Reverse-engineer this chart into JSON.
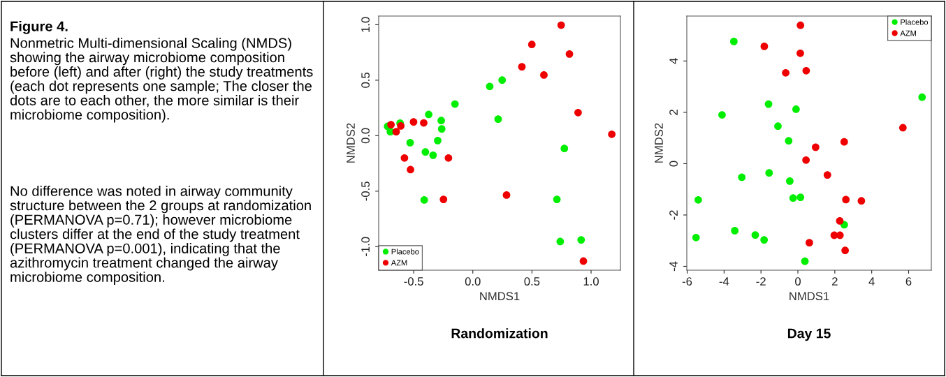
{
  "chart_data": [
    {
      "type": "scatter",
      "title": "Randomization",
      "xlabel": "NMDS1",
      "ylabel": "NMDS2",
      "annotations": [
        "Figure 4.",
        "Nonmetric Multi-dimensional Scaling (NMDS) showing the airway microbiome composition before (left) and after (right) the study treatments (each dot represents one sample; The closer the dots are to each other, the more similar is their microbiome composition).",
        "No difference was noted in airway community structure between the 2 groups at randomization (PERMANOVA p=0.71); however microbiome clusters differ at the end of the study treatment (PERMANOVA p=0.001), indicating that the azithromycin treatment changed the airway microbiome composition."
      ],
      "xlim": [
        -0.796,
        1.248
      ],
      "ylim": [
        -1.212,
        1.078
      ],
      "xticks": [
        -0.5,
        {
          "value": 0,
          "label": "0.0"
        },
        0.5,
        {
          "value": 1,
          "label": "1.0"
        }
      ],
      "yticks": [
        {
          "value": -1,
          "label": "-1.0"
        },
        -0.5,
        {
          "value": 0,
          "label": "0.0"
        },
        0.5,
        {
          "value": 1,
          "label": "1.0"
        }
      ],
      "grid": false,
      "legend": "bottom left",
      "marker": "circle",
      "series": [
        {
          "name": "Placebo",
          "color": "#00ee00",
          "x": [
            -0.721,
            -0.697,
            -0.615,
            -0.373,
            -0.267,
            -0.263,
            -0.151,
            -0.53,
            -0.297,
            -0.401,
            -0.336,
            -0.411,
            0.143,
            0.248,
            0.214,
            0.774,
            0.711,
            0.739,
            0.916
          ],
          "values": [
            0.084,
            0.036,
            0.113,
            0.191,
            0.136,
            0.061,
            0.285,
            -0.063,
            -0.044,
            -0.147,
            -0.176,
            -0.579,
            0.444,
            0.501,
            0.149,
            -0.115,
            -0.574,
            -0.954,
            -0.939
          ]
        },
        {
          "name": "AZM",
          "color": "#ee0000",
          "x": [
            -0.692,
            -0.648,
            -0.609,
            -0.501,
            -0.415,
            -0.578,
            -0.527,
            -0.206,
            -0.248,
            0.285,
            0.415,
            0.499,
            0.601,
            0.747,
            0.817,
            0.89,
            1.175,
            0.935
          ],
          "values": [
            0.099,
            0.036,
            0.088,
            0.124,
            0.115,
            -0.201,
            -0.306,
            -0.201,
            -0.574,
            -0.535,
            0.621,
            0.822,
            0.547,
            0.996,
            0.736,
            0.208,
            0.013,
            -1.13
          ]
        }
      ]
    },
    {
      "type": "scatter",
      "title": "Day 15",
      "xlabel": "NMDS1",
      "ylabel": "NMDS2",
      "xlim": [
        -6.02,
        7.23
      ],
      "ylim": [
        -4.15,
        5.75
      ],
      "xticks": [
        -6,
        -4,
        -2,
        0,
        2,
        4,
        6
      ],
      "yticks": [
        -4,
        -2,
        0,
        2,
        4
      ],
      "grid": false,
      "legend": "top right",
      "marker": "circle",
      "series": [
        {
          "name": "Placebo",
          "color": "#00ee00",
          "x": [
            -3.47,
            -1.59,
            -0.1,
            -4.11,
            -1.08,
            -0.5,
            6.73,
            -1.56,
            -3.04,
            -0.44,
            -0.26,
            0.14,
            -5.4,
            -5.52,
            -3.42,
            -2.31,
            -1.83,
            2.51,
            0.38
          ],
          "values": [
            4.76,
            2.32,
            2.12,
            1.9,
            1.46,
            0.89,
            2.59,
            -0.36,
            -0.53,
            -0.68,
            -1.34,
            -1.31,
            -1.41,
            -2.88,
            -2.61,
            -2.78,
            -2.97,
            -2.38,
            -3.8
          ]
        },
        {
          "name": "AZM",
          "color": "#ee0000",
          "x": [
            0.14,
            -1.82,
            0.13,
            -0.66,
            0.45,
            5.69,
            2.51,
            0.96,
            0.44,
            1.6,
            2.6,
            3.44,
            2.27,
            1.97,
            2.28,
            0.62,
            2.56
          ],
          "values": [
            5.39,
            4.57,
            4.3,
            3.54,
            3.62,
            1.4,
            0.85,
            0.64,
            0.14,
            -0.44,
            -1.4,
            -1.45,
            -2.23,
            -2.79,
            -2.79,
            -3.08,
            -3.38
          ]
        }
      ]
    }
  ]
}
